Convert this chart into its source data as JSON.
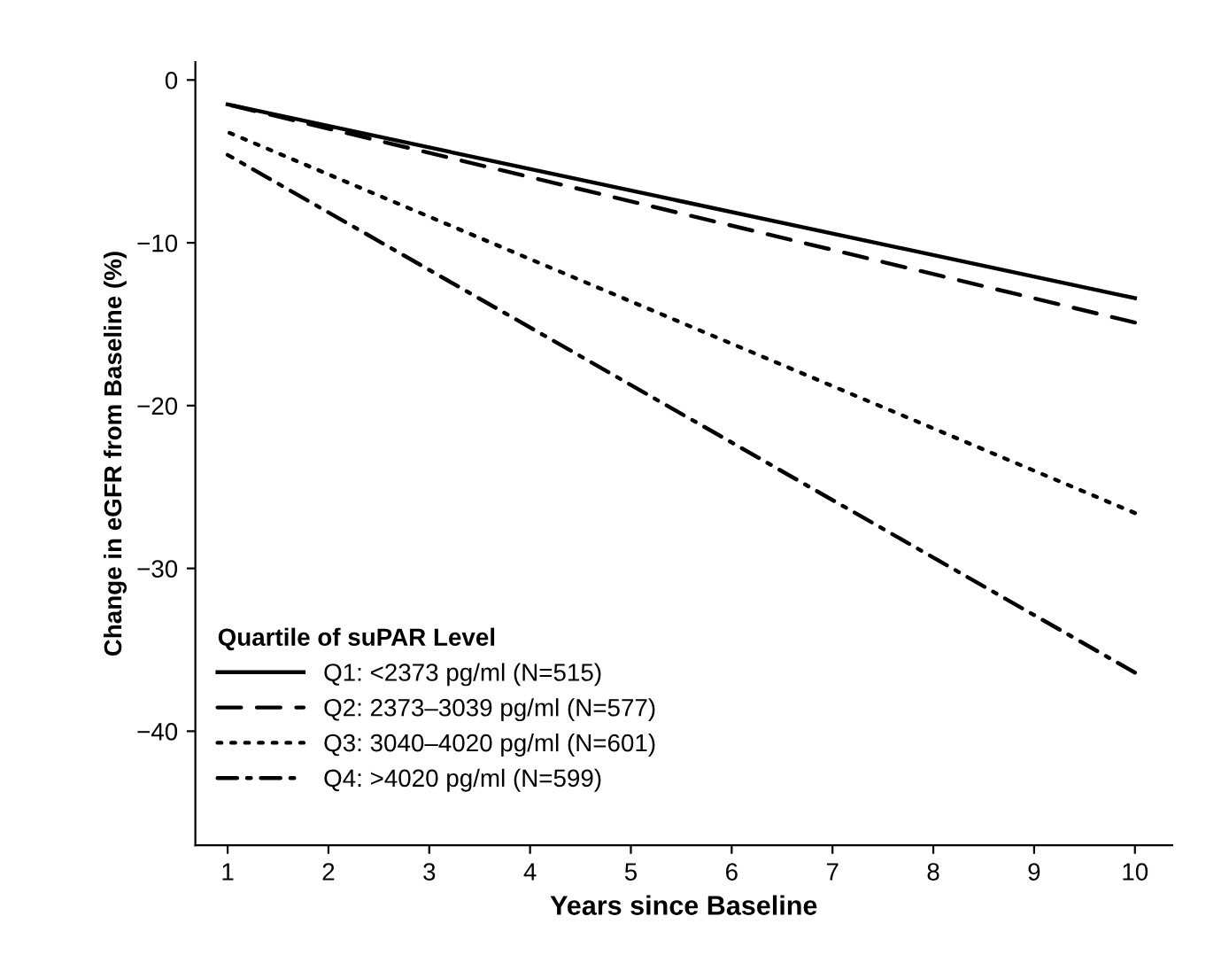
{
  "chart_data": {
    "type": "line",
    "xlabel": "Years since Baseline",
    "ylabel": "Change in eGFR from Baseline (%)",
    "legend_title": "Quartile of suPAR Level",
    "legend": "bottom left",
    "grid": false,
    "marker": "none",
    "x": [
      1,
      10
    ],
    "xlim": [
      0.68,
      10.37
    ],
    "ylim": [
      -47,
      1.1
    ],
    "xticks": [
      1,
      2,
      3,
      4,
      5,
      6,
      7,
      8,
      9,
      10
    ],
    "yticks": [
      0,
      {
        "value": -10,
        "label": "−10"
      },
      {
        "value": -20,
        "label": "−20"
      },
      {
        "value": -30,
        "label": "−30"
      },
      {
        "value": -40,
        "label": "−40"
      }
    ],
    "series": [
      {
        "name": "Q1: <2373 pg/ml (N=515)",
        "color": "#000000",
        "line_style": "solid",
        "values": [
          -1.5,
          -13.4
        ]
      },
      {
        "name": "Q2: 2373–3039 pg/ml (N=577)",
        "color": "#000000",
        "line_style": "dashed",
        "values": [
          -1.5,
          -14.9
        ]
      },
      {
        "name": "Q3: 3040–4020 pg/ml (N=601)",
        "color": "#000000",
        "line_style": "dotted",
        "values": [
          -3.2,
          -26.6
        ]
      },
      {
        "name": "Q4: >4020 pg/ml (N=599)",
        "color": "#000000",
        "line_style": "dashdot",
        "values": [
          -4.6,
          -36.4
        ]
      }
    ]
  }
}
